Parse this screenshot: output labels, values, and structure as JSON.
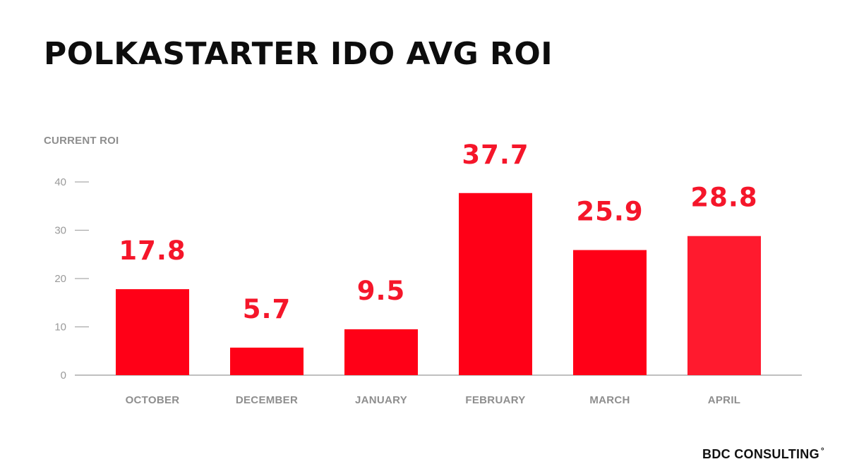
{
  "header": {
    "title": "POLKASTARTER IDO AVG ROI"
  },
  "footer": {
    "brand": "BDC CONSULTING",
    "brand_mark": "°"
  },
  "colors": {
    "bar": "#ff0017",
    "bar_last": "#ff1a2e",
    "value_label": "#f5162a",
    "axis": "#aaaaaa",
    "title": "#0d0d0d"
  },
  "chart_data": {
    "type": "bar",
    "ylabel": "CURRENT ROI",
    "xlabel": "",
    "ylim": [
      0,
      40
    ],
    "yticks": [
      0,
      10,
      20,
      30,
      40
    ],
    "categories": [
      "OCTOBER",
      "DECEMBER",
      "JANUARY",
      "FEBRUARY",
      "MARCH",
      "APRIL"
    ],
    "values": [
      17.8,
      5.7,
      9.5,
      37.7,
      25.9,
      28.8
    ],
    "value_labels": [
      "17.8",
      "5.7",
      "9.5",
      "37.7",
      "25.9",
      "28.8"
    ],
    "grid": false,
    "legend": "none"
  }
}
